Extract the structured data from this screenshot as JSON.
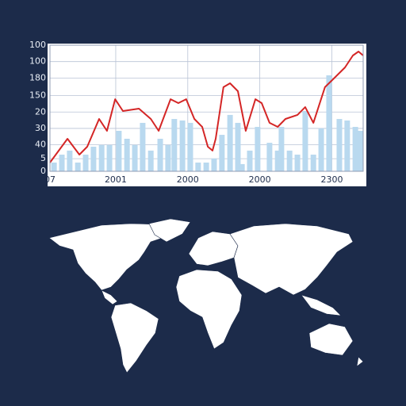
{
  "chart_data": {
    "type": "combo",
    "xlim": [
      0,
      100
    ],
    "xticks": [
      {
        "value": 0,
        "label": "07"
      },
      {
        "value": 21,
        "label": "2001"
      },
      {
        "value": 44,
        "label": "2000"
      },
      {
        "value": 67,
        "label": "2000"
      },
      {
        "value": 90,
        "label": "2300"
      }
    ],
    "ylim": [
      0,
      100
    ],
    "yticks": [
      0,
      {
        "value": 10,
        "label": "5"
      },
      {
        "value": 21,
        "label": "40"
      },
      {
        "value": 34,
        "label": "30"
      },
      {
        "value": 47,
        "label": "20"
      },
      {
        "value": 60,
        "label": "150"
      },
      {
        "value": 74,
        "label": "180"
      },
      {
        "value": 87,
        "label": "100"
      },
      100
    ],
    "grid": true,
    "series": [
      {
        "type": "bar",
        "color": "#b9d9ef",
        "x": [
          1.3,
          3.8,
          6.3,
          8.9,
          11.4,
          13.9,
          16.5,
          19.0,
          22.0,
          24.6,
          27.1,
          29.6,
          32.2,
          35.2,
          37.7,
          39.7,
          42.3,
          44.8,
          47.3,
          49.9,
          52.4,
          54.9,
          57.5,
          60.0,
          61.3,
          63.8,
          66.3,
          70.1,
          72.7,
          73.9,
          76.5,
          79.0,
          81.5,
          84.1,
          86.6,
          89.1,
          92.4,
          94.9,
          97.5,
          99.2
        ],
        "values": [
          6.9,
          13.2,
          16.4,
          6.9,
          13.2,
          19.5,
          20.8,
          20.8,
          32.1,
          25.8,
          20.8,
          38.4,
          16.4,
          25.8,
          20.8,
          41.5,
          40.3,
          38.4,
          6.9,
          6.9,
          10.1,
          28.9,
          44.7,
          38.4,
          5.7,
          16.4,
          35.2,
          22.6,
          16.4,
          35.2,
          16.4,
          13.2,
          47.8,
          13.2,
          34.0,
          76.1,
          41.5,
          40.3,
          35.2,
          32.1
        ]
      },
      {
        "type": "line",
        "color": "#d42626",
        "x": [
          0,
          5.6,
          9.4,
          11.9,
          15.7,
          18.2,
          20.8,
          23.3,
          28.4,
          32.2,
          34.7,
          38.5,
          41.0,
          43.5,
          46.1,
          48.6,
          50.4,
          51.9,
          52.9,
          55.4,
          57.5,
          60.0,
          62.5,
          65.6,
          67.6,
          70.1,
          72.7,
          75.2,
          79.0,
          81.5,
          84.1,
          87.8,
          90.4,
          94.2,
          96.7,
          98.5,
          100
        ],
        "values": [
          6.9,
          25.8,
          13.2,
          19.5,
          41.5,
          32.1,
          57.2,
          47.8,
          49.7,
          41.5,
          32.1,
          57.2,
          54.1,
          57.2,
          41.5,
          35.2,
          19.5,
          16.4,
          25.8,
          66.7,
          69.8,
          63.5,
          32.1,
          57.2,
          54.1,
          38.4,
          35.2,
          41.5,
          44.7,
          50.9,
          38.4,
          66.7,
          73.0,
          82.4,
          91.8,
          95.0,
          91.8
        ]
      }
    ]
  }
}
